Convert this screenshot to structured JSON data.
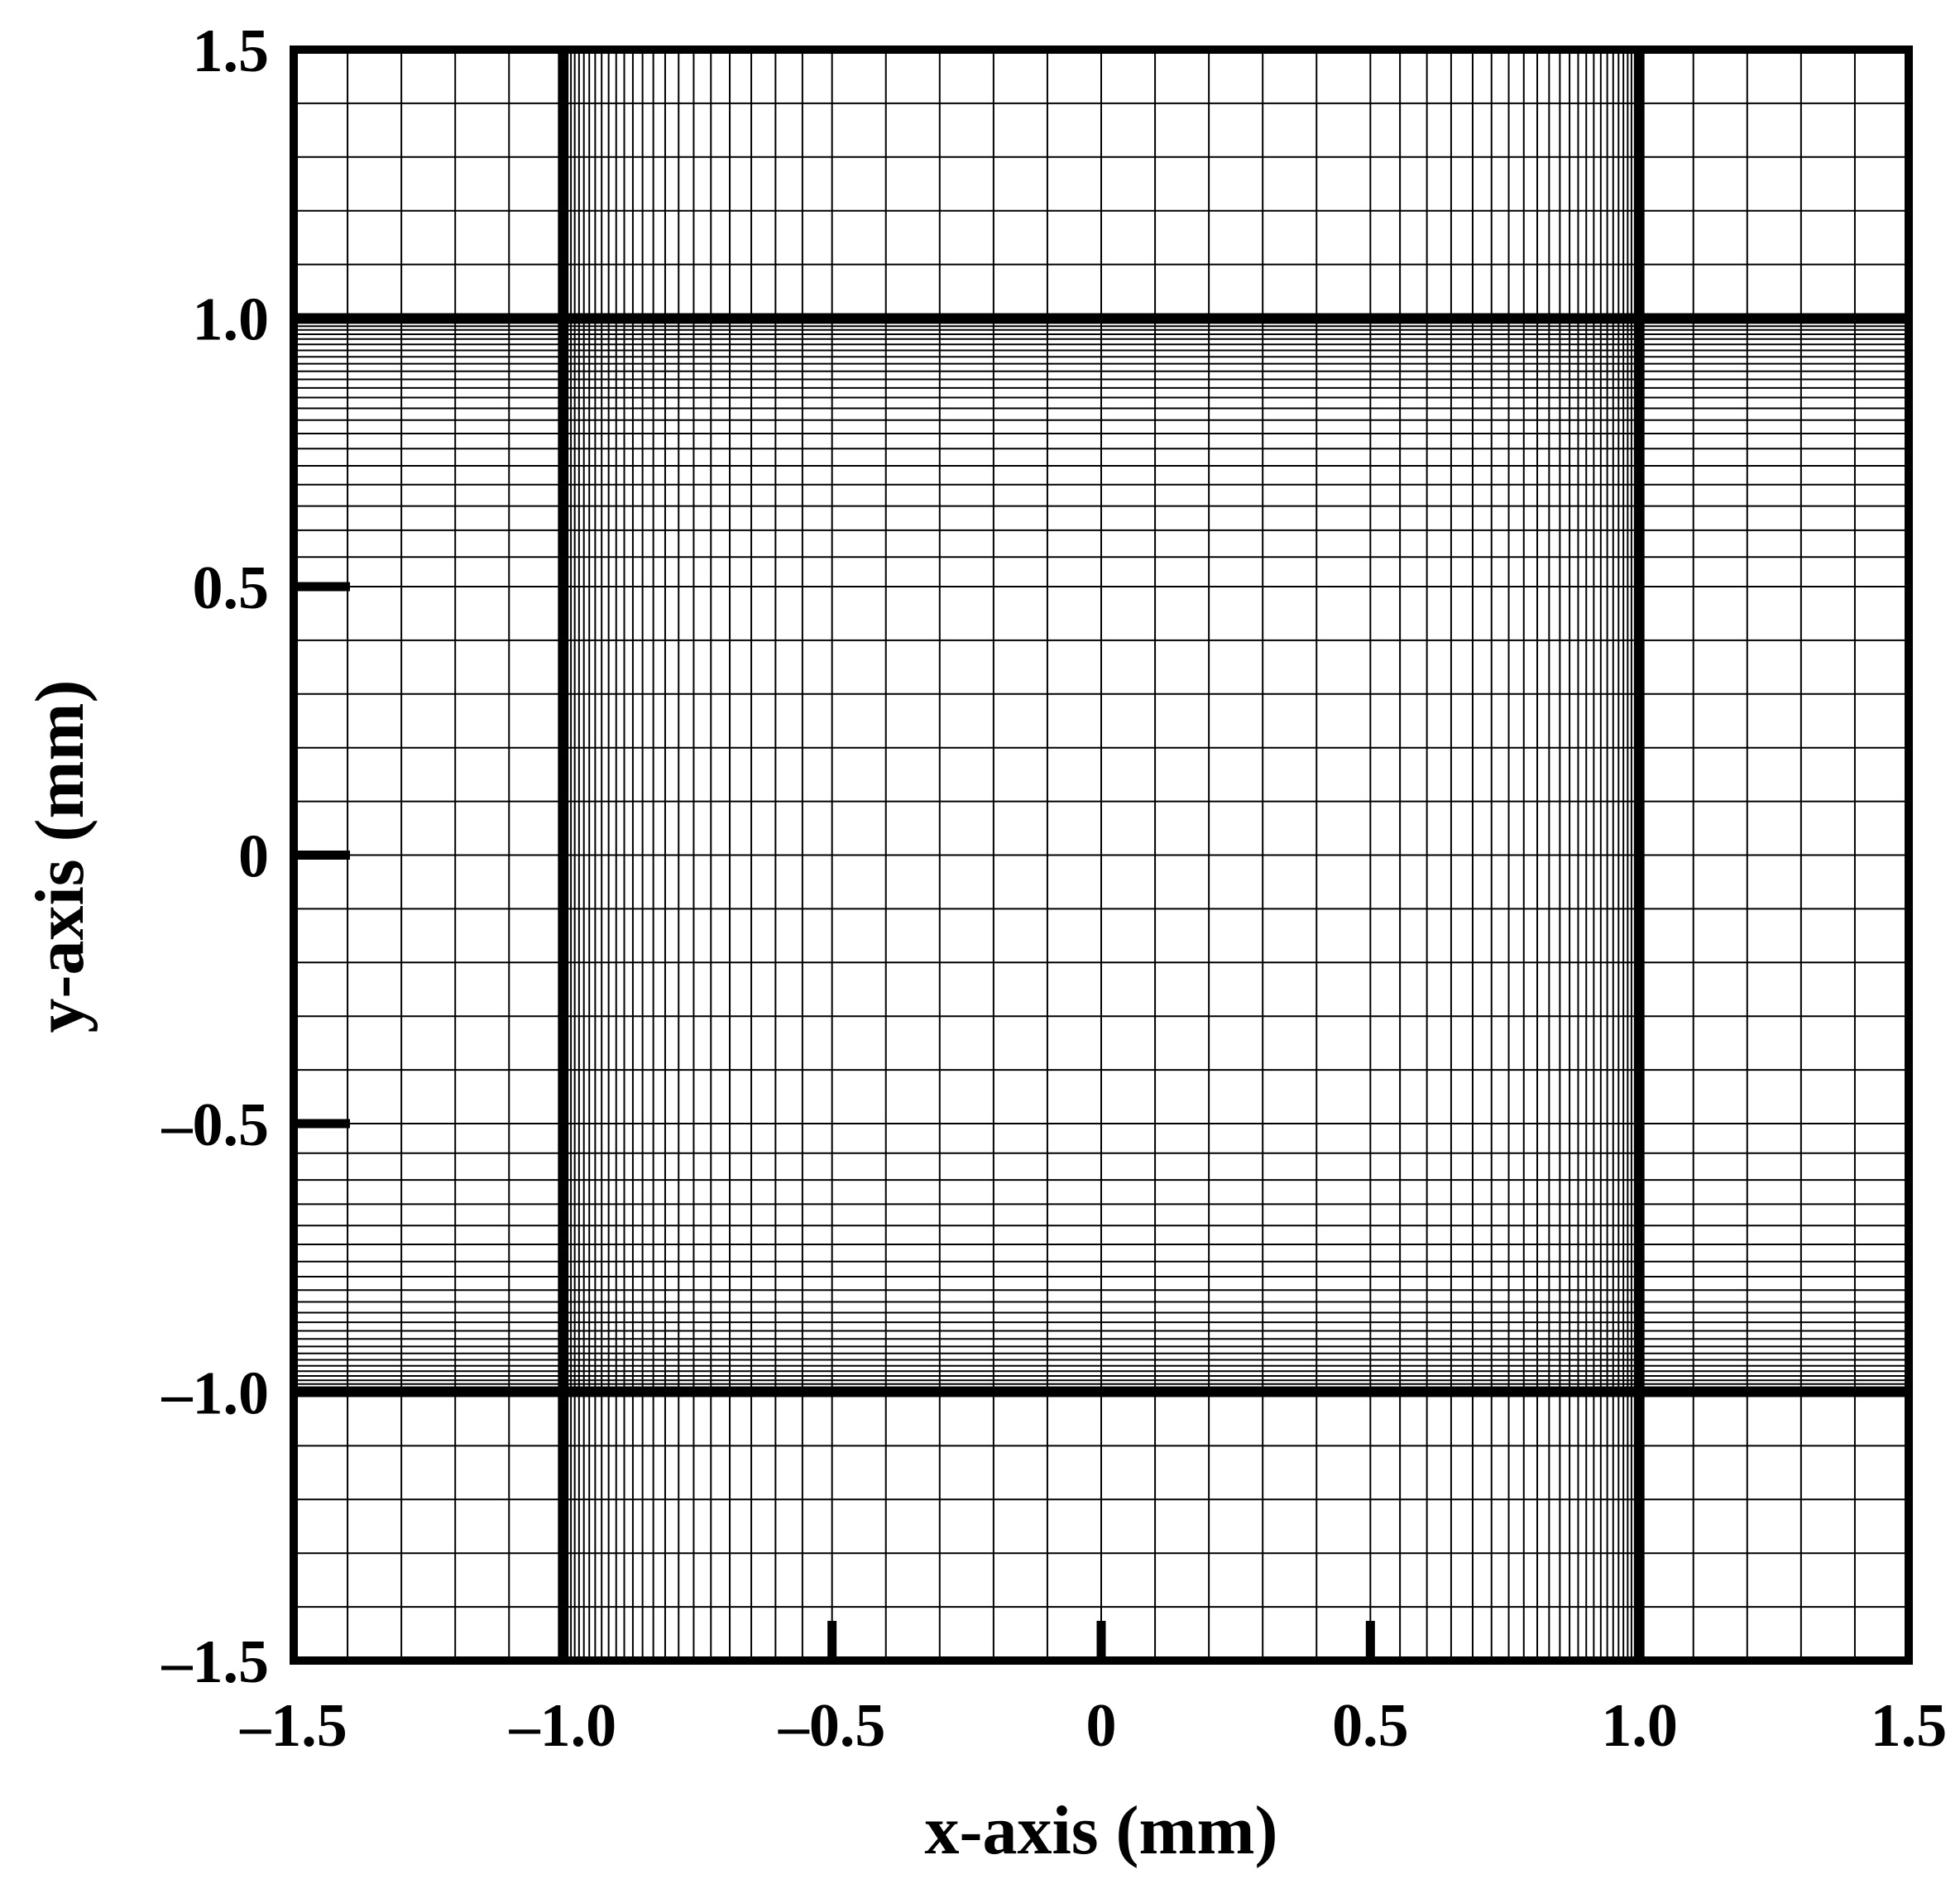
{
  "chart_data": {
    "type": "mesh",
    "xlabel": "x-axis (mm)",
    "ylabel": "y-axis (mm)",
    "xlim": [
      -1.5,
      1.5
    ],
    "ylim": [
      -1.5,
      1.5
    ],
    "xticks": [
      {
        "value": -1.5,
        "label": "–1.5"
      },
      {
        "value": -1.0,
        "label": "–1.0"
      },
      {
        "value": -0.5,
        "label": "–0.5"
      },
      0,
      0.5,
      {
        "value": 1.0,
        "label": "1.0"
      },
      1.5
    ],
    "yticks": [
      {
        "value": -1.5,
        "label": "–1.5"
      },
      {
        "value": -1.0,
        "label": "–1.0"
      },
      {
        "value": -0.5,
        "label": "–0.5"
      },
      0,
      0.5,
      {
        "value": 1.0,
        "label": "1.0"
      },
      1.5
    ],
    "tick_marks_x": [
      -1,
      -0.5,
      0,
      0.5,
      1
    ],
    "tick_marks_y": [
      -1,
      -0.5,
      0,
      0.5,
      1
    ],
    "walls_x": [
      -1,
      1
    ],
    "walls_y": [
      -1,
      1
    ],
    "mesh_x": [
      -1.4,
      -1.3,
      -1.2,
      -1.1,
      -0.996,
      -0.991,
      -0.985,
      -0.978,
      -0.97,
      -0.961,
      -0.951,
      -0.94,
      -0.928,
      -0.915,
      -0.901,
      -0.886,
      -0.87,
      -0.852,
      -0.832,
      -0.81,
      -0.785,
      -0.757,
      -0.725,
      -0.69,
      -0.65,
      -0.605,
      -0.555,
      -0.5,
      -0.4,
      -0.3,
      -0.2,
      -0.1,
      0,
      0.1,
      0.2,
      0.3,
      0.4,
      0.5,
      0.555,
      0.605,
      0.65,
      0.69,
      0.725,
      0.757,
      0.785,
      0.81,
      0.832,
      0.852,
      0.87,
      0.886,
      0.901,
      0.915,
      0.928,
      0.94,
      0.951,
      0.961,
      0.97,
      0.978,
      0.985,
      0.991,
      0.996,
      1.1,
      1.2,
      1.3,
      1.4
    ],
    "mesh_y": [
      -1.4,
      -1.3,
      -1.2,
      -1.1,
      -0.996,
      -0.991,
      -0.985,
      -0.978,
      -0.97,
      -0.961,
      -0.951,
      -0.94,
      -0.928,
      -0.915,
      -0.901,
      -0.886,
      -0.87,
      -0.852,
      -0.832,
      -0.81,
      -0.785,
      -0.757,
      -0.725,
      -0.69,
      -0.65,
      -0.605,
      -0.555,
      -0.5,
      -0.4,
      -0.3,
      -0.2,
      -0.1,
      0,
      0.1,
      0.2,
      0.3,
      0.4,
      0.5,
      0.555,
      0.605,
      0.65,
      0.69,
      0.725,
      0.757,
      0.785,
      0.81,
      0.832,
      0.852,
      0.87,
      0.886,
      0.901,
      0.915,
      0.928,
      0.94,
      0.951,
      0.961,
      0.97,
      0.978,
      0.985,
      0.991,
      0.996,
      1.1,
      1.2,
      1.3,
      1.4
    ],
    "color": "#000000"
  }
}
